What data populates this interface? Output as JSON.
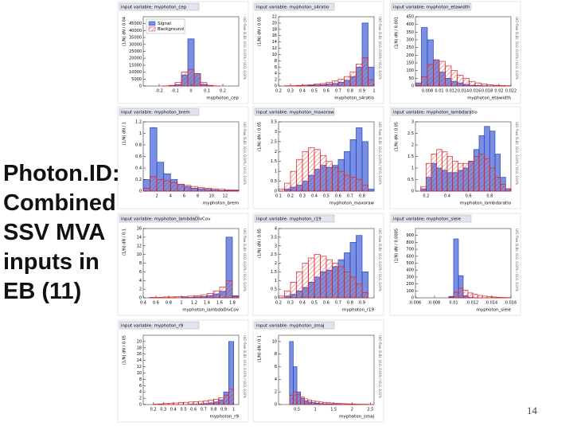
{
  "slide_title_lines": [
    "Photon.ID:",
    "Combined",
    "SSV MVA",
    "inputs in",
    "EB (11)"
  ],
  "page_number": "14",
  "chart_data": [
    {
      "type": "histogram",
      "title": "input variable: myphoton_cep",
      "xlabel": "myphoton_cep",
      "ylabel": "(1/N) dN / 0.04",
      "overflow_note": "U/O-flow (S,B): (0.0, 0.0)% / (0.0, 0.0)%",
      "legend": "upper left",
      "bins": [
        -0.3,
        -0.26,
        -0.22,
        -0.18,
        -0.14,
        -0.1,
        -0.06,
        -0.02,
        0.02,
        0.06,
        0.1,
        0.14,
        0.18,
        0.22,
        0.26,
        0.3
      ],
      "series": [
        {
          "name": "Signal",
          "color": "#2244cc",
          "values": [
            0,
            0,
            0,
            0,
            100,
            1000,
            8000,
            34000,
            9000,
            1200,
            100,
            0,
            0,
            0,
            0
          ]
        },
        {
          "name": "Background",
          "color": "#dd2222",
          "values": [
            0,
            0,
            0,
            100,
            500,
            2500,
            10000,
            12000,
            9000,
            2500,
            500,
            100,
            0,
            0,
            0
          ]
        }
      ],
      "xlim": [
        -0.3,
        0.3
      ],
      "xticks": [
        -0.2,
        -0.1,
        0,
        0.1,
        0.2
      ],
      "ylim": [
        0,
        50000
      ],
      "yticks": [
        0,
        5000,
        10000,
        15000,
        20000,
        25000,
        30000,
        35000,
        40000,
        45000
      ]
    },
    {
      "type": "histogram",
      "title": "input variable: myphoton_s4ratio",
      "xlabel": "myphoton_s4ratio",
      "ylabel": "(1/N) dN / 0.05",
      "overflow_note": "U/O-flow (S,B): (0.0, 0.0)% / (0.0, 0.0)%",
      "bins": [
        0.2,
        0.25,
        0.3,
        0.35,
        0.4,
        0.45,
        0.5,
        0.55,
        0.6,
        0.65,
        0.7,
        0.75,
        0.8,
        0.85,
        0.9,
        0.95,
        1
      ],
      "series": [
        {
          "name": "Signal",
          "color": "#2244cc",
          "values": [
            0,
            0,
            0,
            0.1,
            0.1,
            0.2,
            0.3,
            0.4,
            0.6,
            0.8,
            1.2,
            1.8,
            3,
            6,
            20,
            6
          ]
        },
        {
          "name": "Background",
          "color": "#dd2222",
          "values": [
            0,
            0.1,
            0.1,
            0.2,
            0.3,
            0.4,
            0.6,
            0.8,
            1.2,
            1.6,
            2.2,
            3,
            4.5,
            7,
            9,
            2
          ]
        }
      ],
      "xlim": [
        0.2,
        1
      ],
      "xticks": [
        0.2,
        0.3,
        0.4,
        0.5,
        0.6,
        0.7,
        0.8,
        0.9,
        1
      ],
      "ylim": [
        0,
        22
      ],
      "yticks": [
        0,
        2,
        4,
        6,
        8,
        10,
        12,
        14,
        16,
        18,
        20,
        22
      ]
    },
    {
      "type": "histogram",
      "title": "input variable: myphoton_etawidth",
      "xlabel": "myphoton_etawidth",
      "ylabel": "(1/N) dN / 0.001",
      "overflow_note": "U/O-flow (S,B): (0.0, 0.0)% / (0.0, 0.0)%",
      "bins": [
        0.006,
        0.007,
        0.008,
        0.009,
        0.01,
        0.011,
        0.012,
        0.013,
        0.014,
        0.015,
        0.016,
        0.017,
        0.018,
        0.019,
        0.02,
        0.021,
        0.022
      ],
      "series": [
        {
          "name": "Signal",
          "color": "#2244cc",
          "values": [
            20,
            380,
            300,
            170,
            90,
            50,
            30,
            20,
            10,
            5,
            3,
            2,
            1,
            1,
            0,
            0
          ]
        },
        {
          "name": "Background",
          "color": "#dd2222",
          "values": [
            5,
            60,
            140,
            170,
            160,
            130,
            100,
            70,
            50,
            30,
            20,
            12,
            8,
            5,
            3,
            2
          ]
        }
      ],
      "xlim": [
        0.006,
        0.022
      ],
      "xticks": [
        0.008,
        0.01,
        0.012,
        0.014,
        0.016,
        0.018,
        0.02,
        0.022
      ],
      "ylim": [
        0,
        450
      ],
      "yticks": [
        0,
        50,
        100,
        150,
        200,
        250,
        300,
        350,
        400,
        450
      ]
    },
    {
      "type": "histogram",
      "title": "input variable: myphoton_brem",
      "xlabel": "myphoton_brem",
      "ylabel": "(1/N) dN / 1",
      "overflow_note": "U/O-flow (S,B): (0.0, 0.0)% / (0.0, 0.0)%",
      "bins": [
        0,
        1,
        2,
        3,
        4,
        5,
        6,
        7,
        8,
        9,
        10,
        11,
        12,
        13,
        14
      ],
      "series": [
        {
          "name": "Signal",
          "color": "#2244cc",
          "values": [
            0.2,
            1.1,
            0.5,
            0.3,
            0.2,
            0.12,
            0.08,
            0.05,
            0.04,
            0.03,
            0.02,
            0.01,
            0.01,
            0.01
          ]
        },
        {
          "name": "Background",
          "color": "#dd2222",
          "values": [
            0.05,
            0.25,
            0.2,
            0.18,
            0.15,
            0.12,
            0.1,
            0.08,
            0.06,
            0.05,
            0.04,
            0.03,
            0.02,
            0.02
          ]
        }
      ],
      "xlim": [
        0,
        14
      ],
      "xticks": [
        2,
        4,
        6,
        8,
        10,
        12
      ],
      "ylim": [
        0,
        1.2
      ],
      "yticks": [
        0,
        0.2,
        0.4,
        0.6,
        0.8,
        1,
        1.2
      ]
    },
    {
      "type": "histogram",
      "title": "input variable: myphoton_maxoraw",
      "xlabel": "myphoton_maxoraw",
      "ylabel": "(1/N) dN / 0.05",
      "overflow_note": "U/O-flow (S,B): (0.0, 0.0)% / (0.0, 0.0)%",
      "bins": [
        0.1,
        0.15,
        0.2,
        0.25,
        0.3,
        0.35,
        0.4,
        0.45,
        0.5,
        0.55,
        0.6,
        0.65,
        0.7,
        0.75,
        0.8,
        0.85,
        0.9
      ],
      "series": [
        {
          "name": "Signal",
          "color": "#2244cc",
          "values": [
            0,
            0.1,
            0.2,
            0.3,
            0.5,
            0.8,
            1.1,
            1.3,
            1.2,
            1.3,
            1.6,
            2,
            2.6,
            3.2,
            2.5,
            0.1
          ]
        },
        {
          "name": "Background",
          "color": "#dd2222",
          "values": [
            0.1,
            0.4,
            1,
            1.6,
            2,
            2.2,
            2.1,
            1.8,
            1.5,
            1.2,
            1,
            0.8,
            0.7,
            0.6,
            0.3,
            0
          ]
        }
      ],
      "xlim": [
        0.1,
        0.9
      ],
      "xticks": [
        0.1,
        0.2,
        0.3,
        0.4,
        0.5,
        0.6,
        0.7,
        0.8
      ],
      "ylim": [
        0,
        3.5
      ],
      "yticks": [
        0,
        0.5,
        1,
        1.5,
        2,
        2.5,
        3,
        3.5
      ]
    },
    {
      "type": "histogram",
      "title": "input variable: myphoton_lambdaratio",
      "xlabel": "myphoton_lambdaratio",
      "ylabel": "(1/N) dN / 0.05",
      "overflow_note": "U/O-flow (S,B): (0.0, 0.0)% / (0.0, 0.0)%",
      "bins": [
        0.1,
        0.15,
        0.2,
        0.25,
        0.3,
        0.35,
        0.4,
        0.45,
        0.5,
        0.55,
        0.6,
        0.65,
        0.7,
        0.75,
        0.8,
        0.85,
        0.9,
        0.95,
        1
      ],
      "series": [
        {
          "name": "Signal",
          "color": "#2244cc",
          "values": [
            0,
            0.1,
            0.6,
            1.2,
            1,
            0.9,
            0.8,
            0.8,
            0.9,
            1,
            1.3,
            1.8,
            2.4,
            2.8,
            2.6,
            1.6,
            0.6,
            0.1
          ]
        },
        {
          "name": "Background",
          "color": "#dd2222",
          "values": [
            0,
            0.2,
            1.2,
            1.6,
            1.8,
            1.7,
            1.5,
            1.3,
            1.2,
            1.2,
            1.3,
            1.5,
            1.6,
            1.4,
            1,
            0.6,
            0.3,
            0.1
          ]
        }
      ],
      "xlim": [
        0.1,
        1
      ],
      "xticks": [
        0.2,
        0.4,
        0.6,
        0.8
      ],
      "ylim": [
        0,
        3
      ],
      "yticks": [
        0,
        0.5,
        1,
        1.5,
        2,
        2.5,
        3
      ]
    },
    {
      "type": "histogram",
      "title": "input variable: myphoton_lambdaDivCov",
      "xlabel": "myphoton_lambdaDivCov",
      "ylabel": "(1/N) dN / 0.1",
      "overflow_note": "U/O-flow (S,B): (0.0, 0.0)% / (0.0, 0.0)%",
      "bins": [
        0.4,
        0.5,
        0.6,
        0.7,
        0.8,
        0.9,
        1,
        1.1,
        1.2,
        1.3,
        1.4,
        1.5,
        1.6,
        1.7,
        1.8,
        1.9
      ],
      "series": [
        {
          "name": "Signal",
          "color": "#2244cc",
          "values": [
            0,
            0,
            0,
            0,
            0,
            0,
            0.1,
            0.1,
            0.2,
            0.3,
            0.5,
            0.9,
            1.5,
            14,
            0.5
          ]
        },
        {
          "name": "Background",
          "color": "#dd2222",
          "values": [
            0,
            0.1,
            0.1,
            0.2,
            0.2,
            0.3,
            0.3,
            0.4,
            0.5,
            0.7,
            1,
            1.6,
            2.5,
            4,
            0.3
          ]
        }
      ],
      "xlim": [
        0.4,
        1.9
      ],
      "xticks": [
        0.4,
        0.6,
        0.8,
        1,
        1.2,
        1.4,
        1.6,
        1.8
      ],
      "ylim": [
        0,
        16
      ],
      "yticks": [
        0,
        2,
        4,
        6,
        8,
        10,
        12,
        14,
        16
      ]
    },
    {
      "type": "histogram",
      "title": "input variable: myphoton_r19",
      "xlabel": "myphoton_r19",
      "ylabel": "(1/N) dN / 0.05",
      "overflow_note": "U/O-flow (S,B): (0.0, 0.0)% / (0.0, 0.0)%",
      "bins": [
        0.2,
        0.25,
        0.3,
        0.35,
        0.4,
        0.45,
        0.5,
        0.55,
        0.6,
        0.65,
        0.7,
        0.75,
        0.8,
        0.85,
        0.9,
        0.95,
        1
      ],
      "series": [
        {
          "name": "Signal",
          "color": "#2244cc",
          "values": [
            0,
            0.1,
            0.2,
            0.4,
            0.6,
            0.9,
            1.2,
            1.5,
            1.6,
            1.8,
            2.2,
            2.6,
            3.2,
            3.6,
            1.5,
            0
          ]
        },
        {
          "name": "Background",
          "color": "#dd2222",
          "values": [
            0.1,
            0.4,
            0.9,
            1.5,
            2,
            2.3,
            2.5,
            2.4,
            2.2,
            2,
            1.8,
            1.5,
            1.2,
            0.8,
            0.3,
            0
          ]
        }
      ],
      "xlim": [
        0.2,
        1
      ],
      "xticks": [
        0.2,
        0.3,
        0.4,
        0.5,
        0.6,
        0.7,
        0.8,
        0.9
      ],
      "ylim": [
        0,
        4
      ],
      "yticks": [
        0,
        0.5,
        1,
        1.5,
        2,
        2.5,
        3,
        3.5,
        4
      ]
    },
    {
      "type": "histogram",
      "title": "input variable: myphoton_sieie",
      "xlabel": "myphoton_sieie",
      "ylabel": "(1/N) dN / 0.0005",
      "overflow_note": "U/O-flow (S,B): (0.0, 0.0)% / (0.0, 0.0)%",
      "bins": [
        0.006,
        0.0065,
        0.007,
        0.0075,
        0.008,
        0.0085,
        0.009,
        0.0095,
        0.01,
        0.0105,
        0.011,
        0.0115,
        0.012,
        0.0125,
        0.013,
        0.0135,
        0.014,
        0.0145,
        0.015,
        0.0155,
        0.016
      ],
      "series": [
        {
          "name": "Signal",
          "color": "#2244cc",
          "values": [
            0,
            0,
            0,
            0,
            0,
            0,
            0,
            20,
            850,
            320,
            30,
            5,
            2,
            1,
            0,
            0,
            0,
            0,
            0,
            0
          ]
        },
        {
          "name": "Background",
          "color": "#dd2222",
          "values": [
            0,
            0,
            0,
            0,
            0,
            0,
            0,
            10,
            80,
            140,
            110,
            70,
            50,
            35,
            25,
            18,
            12,
            8,
            5,
            3
          ]
        }
      ],
      "xlim": [
        0.006,
        0.016
      ],
      "xticks": [
        0.006,
        0.008,
        0.01,
        0.012,
        0.014,
        0.016
      ],
      "ylim": [
        0,
        1000
      ],
      "yticks": [
        0,
        100,
        200,
        300,
        400,
        500,
        600,
        700,
        800,
        900
      ]
    },
    {
      "type": "histogram",
      "title": "input variable: myphoton_r9",
      "xlabel": "myphoton_r9",
      "ylabel": "(1/N) dN / 0.05",
      "overflow_note": "U/O-flow (S,B): (0.0, 0.0)% / (0.0, 0.0)%",
      "bins": [
        0.1,
        0.15,
        0.2,
        0.25,
        0.3,
        0.35,
        0.4,
        0.45,
        0.5,
        0.55,
        0.6,
        0.65,
        0.7,
        0.75,
        0.8,
        0.85,
        0.9,
        0.95,
        1,
        1.05
      ],
      "series": [
        {
          "name": "Signal",
          "color": "#2244cc",
          "values": [
            0,
            0,
            0,
            0,
            0,
            0,
            0,
            0,
            0,
            0.1,
            0.1,
            0.2,
            0.3,
            0.5,
            0.8,
            1.5,
            4,
            20,
            0
          ]
        },
        {
          "name": "Background",
          "color": "#dd2222",
          "values": [
            0,
            0,
            0.1,
            0.2,
            0.3,
            0.4,
            0.5,
            0.6,
            0.7,
            0.8,
            0.9,
            1,
            1.2,
            1.4,
            1.7,
            2.2,
            3,
            5,
            0
          ]
        }
      ],
      "xlim": [
        0.1,
        1.05
      ],
      "xticks": [
        0.2,
        0.3,
        0.4,
        0.5,
        0.6,
        0.7,
        0.8,
        0.9,
        1
      ],
      "ylim": [
        0,
        22
      ],
      "yticks": [
        0,
        2,
        4,
        6,
        8,
        10,
        12,
        14,
        16,
        18,
        20
      ]
    },
    {
      "type": "histogram",
      "title": "input variable: myphoton_smaj",
      "xlabel": "myphoton_smaj",
      "ylabel": "(1/N) dN / 0.1",
      "overflow_note": "U/O-flow (S,B): (0.0, 0.0)% / (0.0, 0.0)%",
      "bins": [
        0,
        0.1,
        0.2,
        0.3,
        0.4,
        0.5,
        0.6,
        0.7,
        0.8,
        0.9,
        1,
        1.1,
        1.2,
        1.3,
        1.4,
        1.5,
        1.6,
        1.7,
        1.8,
        1.9,
        2,
        2.1,
        2.2,
        2.3,
        2.4,
        2.5,
        2.6
      ],
      "series": [
        {
          "name": "Signal",
          "color": "#2244cc",
          "values": [
            0,
            0,
            0,
            10,
            6,
            2,
            1,
            0.6,
            0.4,
            0.3,
            0.2,
            0.15,
            0.1,
            0.1,
            0.08,
            0.06,
            0.05,
            0.04,
            0.03,
            0.02,
            0.02,
            0.01,
            0.01,
            0.01,
            0,
            0
          ]
        },
        {
          "name": "Background",
          "color": "#dd2222",
          "values": [
            0,
            0,
            0,
            1.5,
            2,
            1.6,
            1.2,
            0.9,
            0.7,
            0.6,
            0.5,
            0.4,
            0.35,
            0.3,
            0.25,
            0.2,
            0.18,
            0.15,
            0.12,
            0.1,
            0.08,
            0.06,
            0.05,
            0.04,
            0.03,
            0.02
          ]
        }
      ],
      "xlim": [
        0,
        2.6
      ],
      "xticks": [
        0.5,
        1,
        1.5,
        2,
        2.5
      ],
      "ylim": [
        0,
        11
      ],
      "yticks": [
        0,
        2,
        4,
        6,
        8,
        10
      ]
    }
  ]
}
